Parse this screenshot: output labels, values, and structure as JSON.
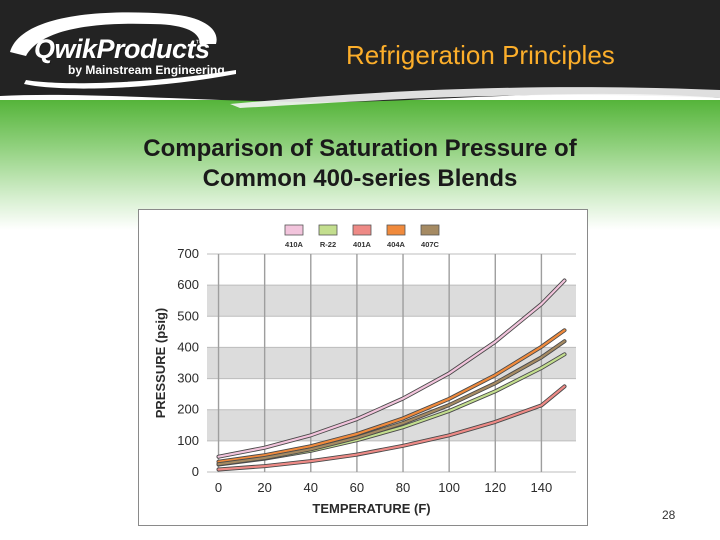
{
  "header": {
    "logo_main": "QwikProducts",
    "logo_tm": "™",
    "logo_sub": "by Mainstream Engineering",
    "title": "Refrigeration Principles"
  },
  "slide": {
    "heading_line1": "Comparison of Saturation Pressure of",
    "heading_line2": "Common 400-series Blends",
    "page_number": "28"
  },
  "colors": {
    "header_bg": "#232323",
    "title": "#fcae2a",
    "green": "#55b43a",
    "grid_band": "#dcdcdc"
  },
  "chart_data": {
    "type": "line",
    "title": "",
    "xlabel": "TEMPERATURE (F)",
    "ylabel": "PRESSURE (psig)",
    "xlim": [
      -5,
      155
    ],
    "ylim": [
      0,
      700
    ],
    "x_ticks": [
      0,
      20,
      40,
      60,
      80,
      100,
      120,
      140
    ],
    "y_ticks": [
      0,
      100,
      200,
      300,
      400,
      500,
      600,
      700
    ],
    "grid": true,
    "legend_position": "top",
    "x": [
      0,
      20,
      40,
      60,
      80,
      100,
      120,
      140,
      150
    ],
    "series": [
      {
        "name": "410A",
        "color": "#f2c4dc",
        "values": [
          49,
          78,
          118,
          170,
          236,
          317,
          418,
          539,
          615
        ]
      },
      {
        "name": "R-22",
        "color": "#c3de8e",
        "values": [
          24,
          43,
          68,
          102,
          144,
          196,
          259,
          334,
          378
        ]
      },
      {
        "name": "401A",
        "color": "#ee8a86",
        "values": [
          8,
          19,
          35,
          56,
          84,
          118,
          161,
          214,
          275
        ]
      },
      {
        "name": "404A",
        "color": "#f08a3c",
        "values": [
          33,
          54,
          83,
          122,
          172,
          235,
          311,
          402,
          455
        ]
      },
      {
        "name": "407C",
        "color": "#a58a62",
        "values": [
          25,
          45,
          73,
          110,
          157,
          215,
          285,
          368,
          420
        ]
      }
    ]
  }
}
